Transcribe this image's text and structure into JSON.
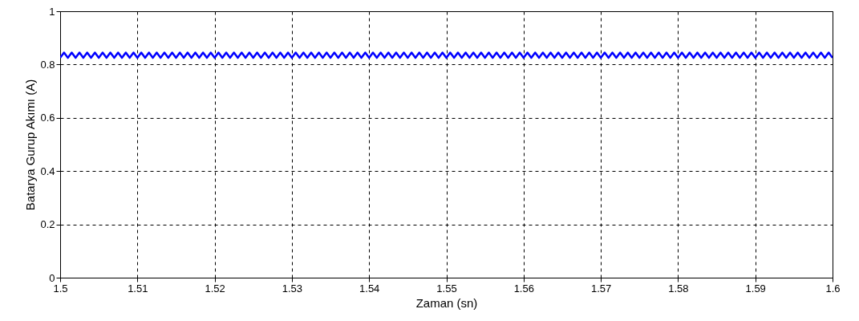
{
  "chart_data": {
    "type": "line",
    "xlabel": "Zaman (sn)",
    "ylabel": "Batarya Gurup Akımı (A)",
    "xlim": [
      1.5,
      1.6
    ],
    "ylim": [
      0,
      1
    ],
    "xticks": [
      1.5,
      1.51,
      1.52,
      1.53,
      1.54,
      1.55,
      1.56,
      1.57,
      1.58,
      1.59,
      1.6
    ],
    "yticks": [
      0,
      0.2,
      0.4,
      0.6,
      0.8,
      1
    ],
    "grid": true,
    "line_style": "solid",
    "marker": "none",
    "series": [
      {
        "color": "#0000ff",
        "x": [
          1.5,
          1.5005,
          1.501,
          1.5015,
          1.502,
          1.5025,
          1.503,
          1.5035,
          1.504,
          1.5045,
          1.505,
          1.5055,
          1.506,
          1.5065,
          1.507,
          1.5075,
          1.508,
          1.5085,
          1.509,
          1.5095,
          1.51,
          1.5105,
          1.511,
          1.5115,
          1.512,
          1.5125,
          1.513,
          1.5135,
          1.514,
          1.5145,
          1.515,
          1.5155,
          1.516,
          1.5165,
          1.517,
          1.5175,
          1.518,
          1.5185,
          1.519,
          1.5195,
          1.52,
          1.5205,
          1.521,
          1.5215,
          1.522,
          1.5225,
          1.523,
          1.5235,
          1.524,
          1.5245,
          1.525,
          1.5255,
          1.526,
          1.5265,
          1.527,
          1.5275,
          1.528,
          1.5285,
          1.529,
          1.5295,
          1.53,
          1.5305,
          1.531,
          1.5315,
          1.532,
          1.5325,
          1.533,
          1.5335,
          1.534,
          1.5345,
          1.535,
          1.5355,
          1.536,
          1.5365,
          1.537,
          1.5375,
          1.538,
          1.5385,
          1.539,
          1.5395,
          1.54,
          1.5405,
          1.541,
          1.5415,
          1.542,
          1.5425,
          1.543,
          1.5435,
          1.544,
          1.5445,
          1.545,
          1.5455,
          1.546,
          1.5465,
          1.547,
          1.5475,
          1.548,
          1.5485,
          1.549,
          1.5495,
          1.55,
          1.5505,
          1.551,
          1.5515,
          1.552,
          1.5525,
          1.553,
          1.5535,
          1.554,
          1.5545,
          1.555,
          1.5555,
          1.556,
          1.5565,
          1.557,
          1.5575,
          1.558,
          1.5585,
          1.559,
          1.5595,
          1.56,
          1.5605,
          1.561,
          1.5615,
          1.562,
          1.5625,
          1.563,
          1.5635,
          1.564,
          1.5645,
          1.565,
          1.5655,
          1.566,
          1.5665,
          1.567,
          1.5675,
          1.568,
          1.5685,
          1.569,
          1.5695,
          1.57,
          1.5705,
          1.571,
          1.5715,
          1.572,
          1.5725,
          1.573,
          1.5735,
          1.574,
          1.5745,
          1.575,
          1.5755,
          1.576,
          1.5765,
          1.577,
          1.5775,
          1.578,
          1.5785,
          1.579,
          1.5795,
          1.58,
          1.5805,
          1.581,
          1.5815,
          1.582,
          1.5825,
          1.583,
          1.5835,
          1.584,
          1.5845,
          1.585,
          1.5855,
          1.586,
          1.5865,
          1.587,
          1.5875,
          1.588,
          1.5885,
          1.589,
          1.5895,
          1.59,
          1.5905,
          1.591,
          1.5915,
          1.592,
          1.5925,
          1.593,
          1.5935,
          1.594,
          1.5945,
          1.595,
          1.5955,
          1.596,
          1.5965,
          1.597,
          1.5975,
          1.598,
          1.5985,
          1.599,
          1.5995,
          1.6
        ],
        "values": [
          0.825,
          0.845,
          0.825,
          0.845,
          0.825,
          0.845,
          0.825,
          0.845,
          0.825,
          0.845,
          0.825,
          0.845,
          0.825,
          0.845,
          0.825,
          0.845,
          0.825,
          0.845,
          0.825,
          0.845,
          0.825,
          0.845,
          0.825,
          0.845,
          0.825,
          0.845,
          0.825,
          0.845,
          0.825,
          0.845,
          0.825,
          0.845,
          0.825,
          0.845,
          0.825,
          0.845,
          0.825,
          0.845,
          0.825,
          0.845,
          0.825,
          0.845,
          0.825,
          0.845,
          0.825,
          0.845,
          0.825,
          0.845,
          0.825,
          0.845,
          0.825,
          0.845,
          0.825,
          0.845,
          0.825,
          0.845,
          0.825,
          0.845,
          0.825,
          0.845,
          0.825,
          0.845,
          0.825,
          0.845,
          0.825,
          0.845,
          0.825,
          0.845,
          0.825,
          0.845,
          0.825,
          0.845,
          0.825,
          0.845,
          0.825,
          0.845,
          0.825,
          0.845,
          0.825,
          0.845,
          0.825,
          0.845,
          0.825,
          0.845,
          0.825,
          0.845,
          0.825,
          0.845,
          0.825,
          0.845,
          0.825,
          0.845,
          0.825,
          0.845,
          0.825,
          0.845,
          0.825,
          0.845,
          0.825,
          0.845,
          0.825,
          0.845,
          0.825,
          0.845,
          0.825,
          0.845,
          0.825,
          0.845,
          0.825,
          0.845,
          0.825,
          0.845,
          0.825,
          0.845,
          0.825,
          0.845,
          0.825,
          0.845,
          0.825,
          0.845,
          0.825,
          0.845,
          0.825,
          0.845,
          0.825,
          0.845,
          0.825,
          0.845,
          0.825,
          0.845,
          0.825,
          0.845,
          0.825,
          0.845,
          0.825,
          0.845,
          0.825,
          0.845,
          0.825,
          0.845,
          0.825,
          0.845,
          0.825,
          0.845,
          0.825,
          0.845,
          0.825,
          0.845,
          0.825,
          0.845,
          0.825,
          0.845,
          0.825,
          0.845,
          0.825,
          0.845,
          0.825,
          0.845,
          0.825,
          0.845,
          0.825,
          0.845,
          0.825,
          0.845,
          0.825,
          0.845,
          0.825,
          0.845,
          0.825,
          0.845,
          0.825,
          0.845,
          0.825,
          0.845,
          0.825,
          0.845,
          0.825,
          0.845,
          0.825,
          0.845,
          0.825,
          0.845,
          0.825,
          0.845,
          0.825,
          0.845,
          0.825,
          0.845,
          0.825,
          0.845,
          0.825,
          0.845,
          0.825,
          0.845,
          0.825,
          0.845,
          0.825,
          0.845,
          0.825,
          0.845,
          0.825
        ]
      }
    ]
  }
}
